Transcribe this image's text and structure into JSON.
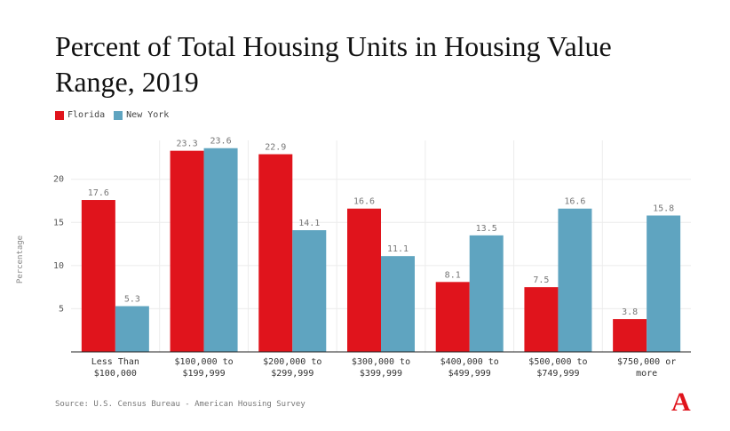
{
  "title": "Percent of Total Housing Units in Housing Value Range, 2019",
  "source": "Source: U.S. Census Bureau - American Housing Survey",
  "logo_text": "A",
  "colors": {
    "florida": "#e0141c",
    "new_york": "#5fa4c0"
  },
  "chart_data": {
    "type": "bar",
    "title": "Percent of Total Housing Units in Housing Value Range, 2019",
    "xlabel": "",
    "ylabel": "Percentage",
    "ylim": [
      0,
      24.5
    ],
    "yticks": [
      5,
      10,
      15,
      20
    ],
    "grid": true,
    "legend_position": "top-left",
    "categories": [
      [
        "Less Than",
        "$100,000"
      ],
      [
        "$100,000 to",
        "$199,999"
      ],
      [
        "$200,000 to",
        "$299,999"
      ],
      [
        "$300,000 to",
        "$399,999"
      ],
      [
        "$400,000 to",
        "$499,999"
      ],
      [
        "$500,000 to",
        "$749,999"
      ],
      [
        "$750,000 or",
        "more"
      ]
    ],
    "series": [
      {
        "name": "Florida",
        "color": "#e0141c",
        "values": [
          17.6,
          23.3,
          22.9,
          16.6,
          8.1,
          7.5,
          3.8
        ]
      },
      {
        "name": "New York",
        "color": "#5fa4c0",
        "values": [
          5.3,
          23.6,
          14.1,
          11.1,
          13.5,
          16.6,
          15.8
        ]
      }
    ]
  }
}
